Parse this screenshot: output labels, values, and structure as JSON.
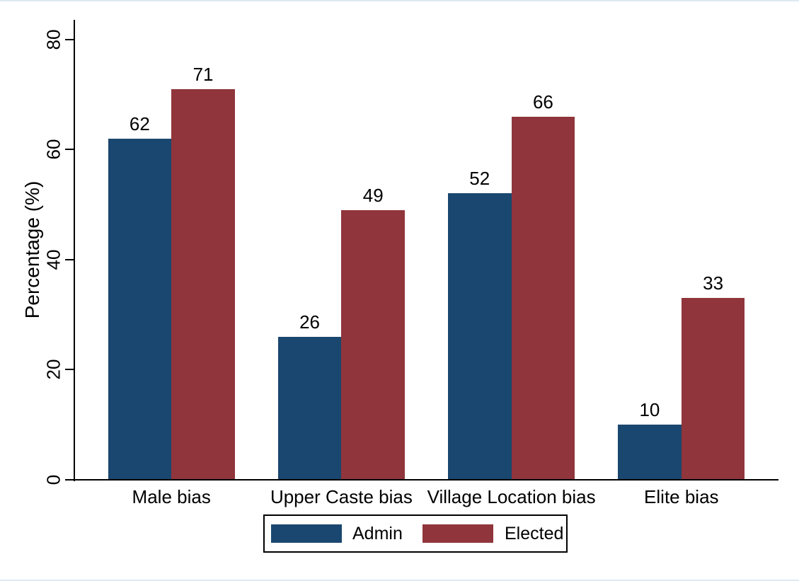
{
  "chart_data": {
    "type": "bar",
    "title": "",
    "categories": [
      "Male bias",
      "Upper Caste bias",
      "Village Location bias",
      "Elite bias"
    ],
    "series": [
      {
        "name": "Admin",
        "color": "#1a476f",
        "values": [
          62,
          26,
          52,
          10
        ]
      },
      {
        "name": "Elected",
        "color": "#90353b",
        "values": [
          71,
          49,
          66,
          33
        ]
      }
    ],
    "xlabel": "",
    "ylabel": "Percentage (%)",
    "ylim": [
      0,
      80
    ],
    "yticks": [
      0,
      20,
      40,
      60,
      80
    ],
    "grid": false,
    "bar_labels_shown": true,
    "legend_position": "bottom-center",
    "axis_color": "#000000",
    "text_color": "#000000",
    "background_color": "#ffffff"
  }
}
